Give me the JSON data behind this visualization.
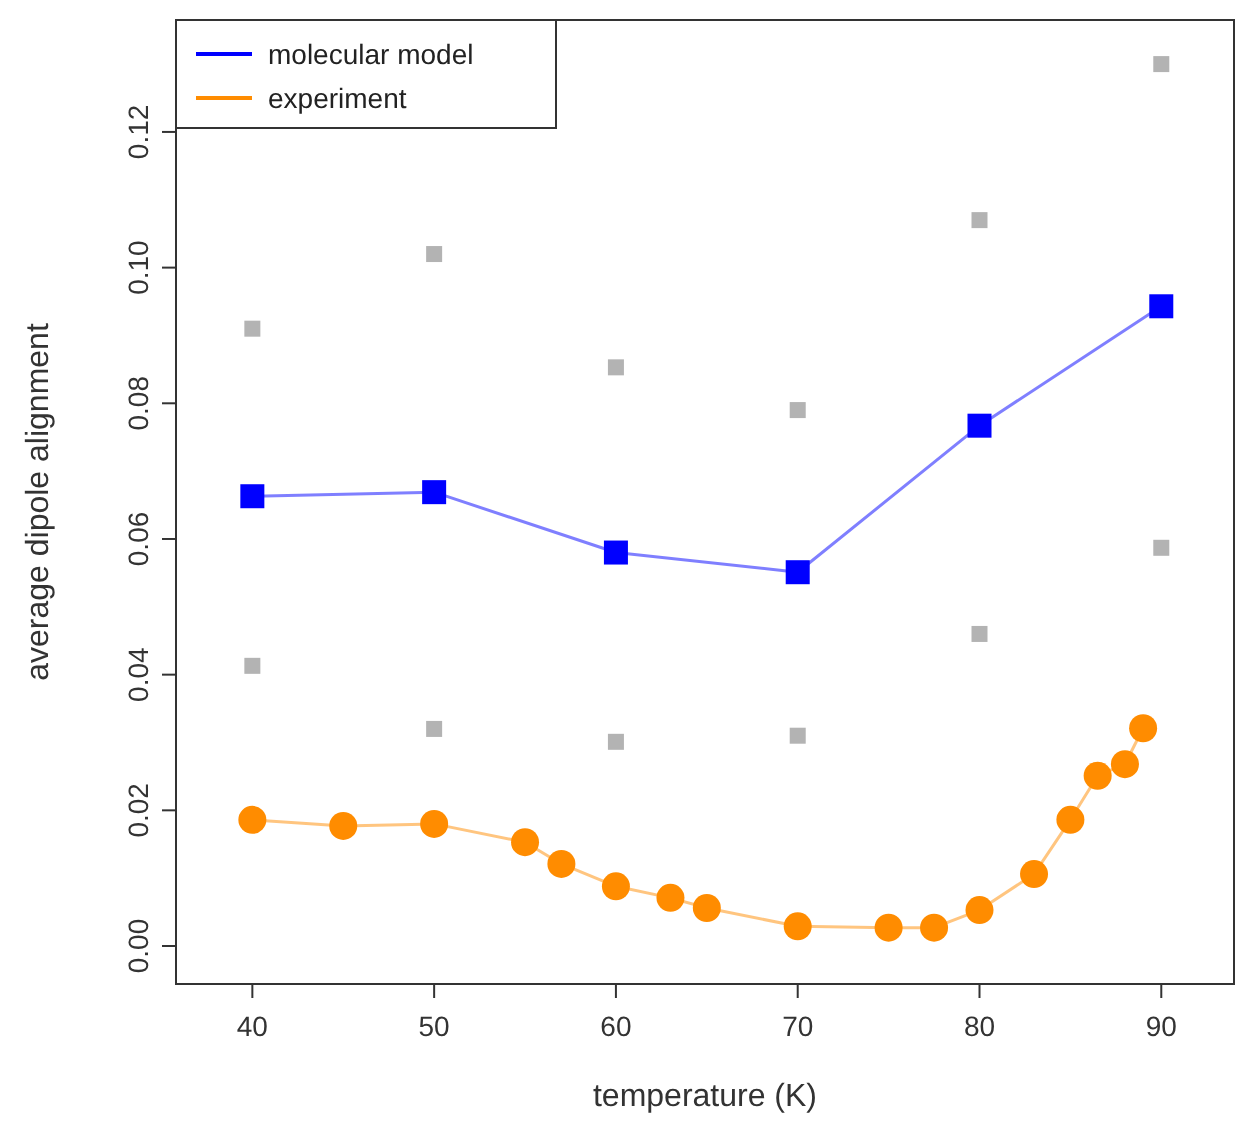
{
  "chart_data": {
    "type": "line",
    "xlabel": "temperature (K)",
    "ylabel": "average dipole alignment",
    "xlim": [
      35.8,
      94
    ],
    "xticks": [
      40,
      50,
      60,
      70,
      80,
      90
    ],
    "ylim": [
      -0.0056,
      0.1365
    ],
    "yticks": [
      {
        "value": 0,
        "label": "0.00"
      },
      {
        "value": 0.02,
        "label": "0.02"
      },
      {
        "value": 0.04,
        "label": "0.04"
      },
      {
        "value": 0.06,
        "label": "0.06"
      },
      {
        "value": 0.08,
        "label": "0.08"
      },
      {
        "value": 0.1,
        "label": "0.10"
      },
      {
        "value": 0.12,
        "label": "0.12"
      }
    ],
    "grid": false,
    "legend": "top left",
    "series": [
      {
        "type": "scatter",
        "marker": "square",
        "color": "#b3b3b3",
        "x": [
          40,
          50,
          60,
          70,
          80,
          90
        ],
        "values": [
          0.091,
          0.102,
          0.0853,
          0.079,
          0.107,
          0.13
        ]
      },
      {
        "type": "scatter",
        "marker": "square",
        "color": "#b3b3b3",
        "x": [
          40,
          50,
          60,
          70,
          80,
          90
        ],
        "values": [
          0.0413,
          0.032,
          0.0301,
          0.031,
          0.046,
          0.0587
        ]
      },
      {
        "name": "molecular model",
        "marker": "square",
        "color": "#0000ff",
        "x": [
          40,
          50,
          60,
          70,
          80,
          90
        ],
        "values": [
          0.0663,
          0.0669,
          0.058,
          0.0551,
          0.0767,
          0.0943
        ]
      },
      {
        "name": "experiment",
        "marker": "circle",
        "color": "#ff8c00",
        "x": [
          40,
          45,
          50,
          55,
          57,
          60,
          63,
          65,
          70,
          75,
          77.5,
          80,
          83,
          85,
          86.5,
          88,
          89
        ],
        "values": [
          0.0186,
          0.0177,
          0.018,
          0.0153,
          0.0121,
          0.0088,
          0.0071,
          0.0056,
          0.0029,
          0.0027,
          0.0027,
          0.0053,
          0.0106,
          0.0186,
          0.0251,
          0.0268,
          0.0321
        ]
      }
    ]
  }
}
